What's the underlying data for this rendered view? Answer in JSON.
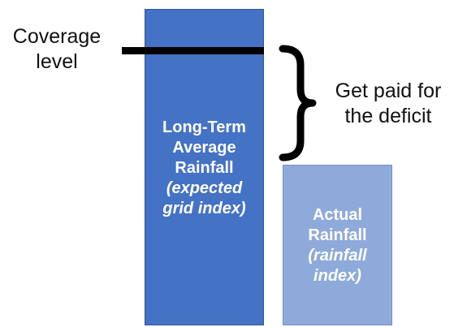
{
  "coverage": {
    "line1": "Coverage",
    "line2": "level"
  },
  "payout": {
    "line1": "Get paid for",
    "line2": "the deficit"
  },
  "long_term_bar": {
    "line1": "Long-Term",
    "line2": "Average",
    "line3": "Rainfall",
    "line4": "(expected",
    "line5": "grid index)",
    "color": "#4472c4"
  },
  "actual_bar": {
    "line1": "Actual",
    "line2": "Rainfall",
    "line3": "(rainfall",
    "line4": "index)",
    "color": "#8eaadb"
  }
}
